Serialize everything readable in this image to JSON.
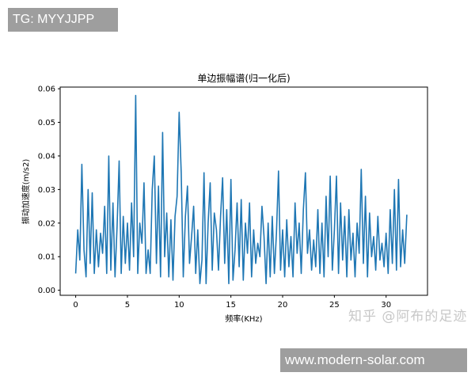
{
  "watermarks": {
    "top_left": "TG: MYYJJPP",
    "bottom_right": "www.modern-solar.com",
    "zhihu": "知乎 @阿布的足迹"
  },
  "chart_data": {
    "type": "line",
    "title": "单边振幅谱(归一化后)",
    "xlabel": "频率(KHz)",
    "ylabel": "振动加速度(m/s2)",
    "xlim": [
      -1.5,
      34
    ],
    "ylim": [
      -0.0015,
      0.0605
    ],
    "xticks": [
      "0",
      "5",
      "10",
      "15",
      "20",
      "25",
      "30"
    ],
    "yticks": [
      "0.00",
      "0.01",
      "0.02",
      "0.03",
      "0.04",
      "0.05",
      "0.06"
    ],
    "grid": false,
    "line_color": "#1f77b4",
    "x_start": 0,
    "x_step": 0.2,
    "values": [
      0.005,
      0.018,
      0.009,
      0.0375,
      0.012,
      0.004,
      0.03,
      0.008,
      0.029,
      0.005,
      0.018,
      0.007,
      0.017,
      0.011,
      0.025,
      0.005,
      0.04,
      0.006,
      0.026,
      0.004,
      0.019,
      0.0385,
      0.005,
      0.022,
      0.008,
      0.02,
      0.006,
      0.026,
      0.01,
      0.058,
      0.005,
      0.02,
      0.014,
      0.032,
      0.005,
      0.012,
      0.005,
      0.03,
      0.04,
      0.008,
      0.031,
      0.004,
      0.047,
      0.01,
      0.023,
      0.004,
      0.021,
      0.003,
      0.022,
      0.028,
      0.053,
      0.035,
      0.004,
      0.022,
      0.031,
      0.008,
      0.016,
      0.025,
      0.005,
      0.018,
      0.002,
      0.009,
      0.035,
      0.002,
      0.02,
      0.032,
      0.006,
      0.023,
      0.018,
      0.006,
      0.022,
      0.0335,
      0.008,
      0.024,
      0.002,
      0.033,
      0.003,
      0.012,
      0.026,
      0.007,
      0.027,
      0.003,
      0.02,
      0.011,
      0.026,
      0.004,
      0.018,
      0.008,
      0.014,
      0.01,
      0.025,
      0.016,
      0.002,
      0.02,
      0.004,
      0.022,
      0.005,
      0.017,
      0.0355,
      0.006,
      0.018,
      0.004,
      0.021,
      0.007,
      0.016,
      0.004,
      0.026,
      0.011,
      0.02,
      0.005,
      0.024,
      0.035,
      0.011,
      0.018,
      0.006,
      0.015,
      0.007,
      0.024,
      0.005,
      0.02,
      0.004,
      0.028,
      0.01,
      0.034,
      0.006,
      0.018,
      0.034,
      0.005,
      0.026,
      0.009,
      0.022,
      0.004,
      0.024,
      0.009,
      0.017,
      0.004,
      0.02,
      0.011,
      0.036,
      0.008,
      0.028,
      0.004,
      0.023,
      0.01,
      0.016,
      0.006,
      0.022,
      0.009,
      0.014,
      0.007,
      0.017,
      0.005,
      0.024,
      0.008,
      0.03,
      0.006,
      0.033,
      0.007,
      0.018,
      0.008,
      0.0225
    ]
  }
}
